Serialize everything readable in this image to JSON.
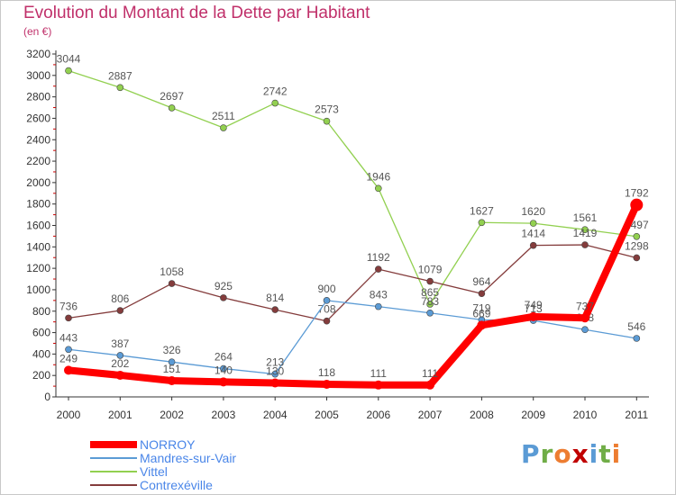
{
  "header": {
    "title": "Evolution du Montant de la Dette par Habitant",
    "unit": "(en €)"
  },
  "colors": {
    "title": "#c0306a",
    "axis": "#333333",
    "grid_tick": "#cc0000"
  },
  "chart_data": {
    "type": "line",
    "title": "Evolution du Montant de la Dette par Habitant",
    "subtitle": "(en €)",
    "xlabel": "",
    "ylabel": "",
    "categories": [
      "2000",
      "2001",
      "2002",
      "2003",
      "2004",
      "2005",
      "2006",
      "2007",
      "2008",
      "2009",
      "2010",
      "2011"
    ],
    "ylim": [
      0,
      3200
    ],
    "yticks": [
      0,
      200,
      400,
      600,
      800,
      1000,
      1200,
      1400,
      1600,
      1800,
      2000,
      2200,
      2400,
      2600,
      2800,
      3000,
      3200
    ],
    "legend_position": "bottom-left",
    "series": [
      {
        "name": "NORROY",
        "color": "#ff0000",
        "legend_color": "#4a86e8",
        "values": [
          249,
          202,
          151,
          140,
          130,
          118,
          111,
          111,
          669,
          749,
          737,
          1792
        ]
      },
      {
        "name": "Mandres-sur-Vair",
        "color": "#5b9bd5",
        "legend_color": "#4a86e8",
        "values": [
          443,
          387,
          326,
          264,
          213,
          900,
          843,
          783,
          719,
          713,
          628,
          546
        ]
      },
      {
        "name": "Vittel",
        "color": "#92d050",
        "legend_color": "#4a86e8",
        "values": [
          3044,
          2887,
          2697,
          2511,
          2742,
          2573,
          1946,
          865,
          1627,
          1620,
          1561,
          1497
        ]
      },
      {
        "name": "Contrexéville",
        "color": "#843c3c",
        "legend_color": "#4a86e8",
        "values": [
          736,
          806,
          1058,
          925,
          814,
          708,
          1192,
          1079,
          964,
          1414,
          1419,
          1298
        ]
      }
    ]
  },
  "logo": {
    "letters": [
      "P",
      "r",
      "o",
      "x",
      "i",
      "t",
      "i"
    ],
    "colors": [
      "#5b9bd5",
      "#70ad47",
      "#ed7d31",
      "#c00000",
      "#5b9bd5",
      "#70ad47",
      "#ed7d31"
    ]
  }
}
